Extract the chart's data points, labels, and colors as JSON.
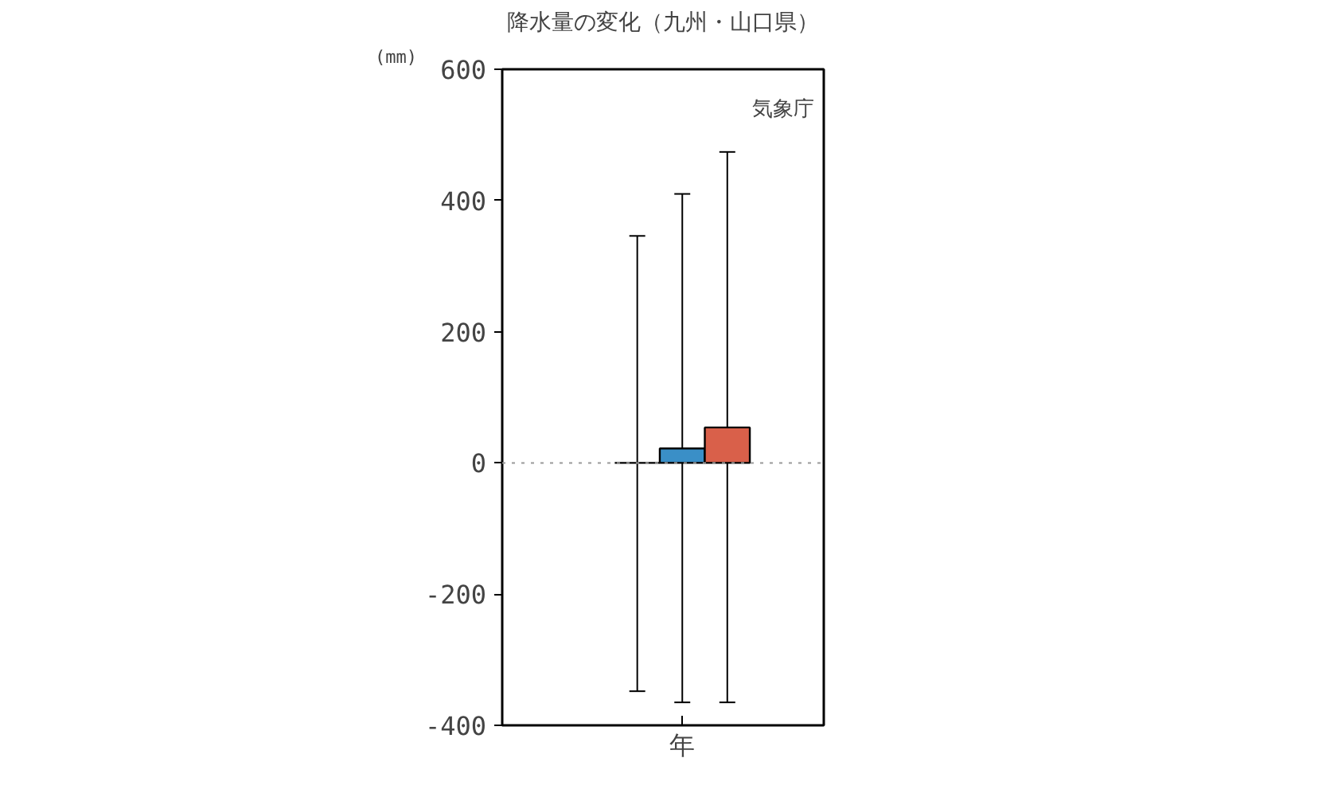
{
  "chart_data": {
    "type": "bar",
    "title": "降水量の変化（九州・山口県）",
    "ylabel": "(mm)",
    "categories": [
      "年"
    ],
    "series": [
      {
        "color": "#000000",
        "values": [
          0
        ],
        "errors": [
          [
            -348,
            346
          ]
        ]
      },
      {
        "color": "#3a8fc7",
        "values": [
          22
        ],
        "errors": [
          [
            -365,
            410
          ]
        ]
      },
      {
        "color": "#d9604a",
        "values": [
          54
        ],
        "errors": [
          [
            -365,
            474
          ]
        ]
      }
    ],
    "ylim": [
      -400,
      600
    ],
    "yticks": [
      -400,
      -200,
      0,
      200,
      400,
      600
    ],
    "ref_lines": [
      {
        "axis": "y",
        "value": 0,
        "label": null,
        "color": "#999999",
        "line_style": "dotted"
      }
    ],
    "annotations": [
      "気象庁"
    ],
    "grid": false
  }
}
